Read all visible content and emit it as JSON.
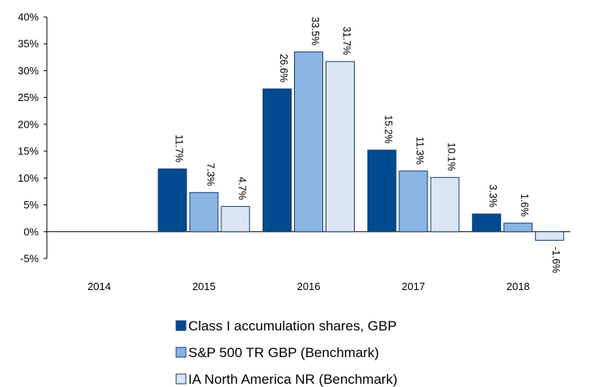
{
  "chart_data": {
    "type": "bar",
    "categories": [
      "2014",
      "2015",
      "2016",
      "2017",
      "2018"
    ],
    "series": [
      {
        "name": "Class I accumulation shares, GBP",
        "color": "#004a8f",
        "values": [
          null,
          11.7,
          26.6,
          15.2,
          3.3
        ],
        "labels": [
          "",
          "11.7%",
          "26.6%",
          "15.2%",
          "3.3%"
        ]
      },
      {
        "name": "S&P 500 TR GBP (Benchmark)",
        "color": "#8cb4e2",
        "values": [
          null,
          7.3,
          33.5,
          11.3,
          1.6
        ],
        "labels": [
          "",
          "7.3%",
          "33.5%",
          "11.3%",
          "1.6%"
        ]
      },
      {
        "name": "IA North America NR (Benchmark)",
        "color": "#dbe6f4",
        "values": [
          null,
          4.7,
          31.7,
          10.1,
          -1.6
        ],
        "labels": [
          "",
          "4.7%",
          "31.7%",
          "10.1%",
          "-1.6%"
        ]
      }
    ],
    "title": "",
    "xlabel": "",
    "ylabel": "",
    "ylim": [
      -5,
      40
    ],
    "yticks": [
      "-5%",
      "0%",
      "5%",
      "10%",
      "15%",
      "20%",
      "25%",
      "30%",
      "35%",
      "40%"
    ],
    "grid": false,
    "legend_position": "bottom-center"
  }
}
